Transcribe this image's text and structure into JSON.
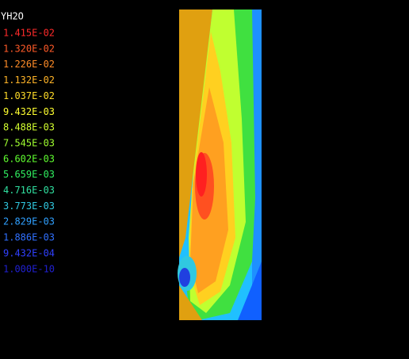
{
  "legend": {
    "title": "YH2O",
    "entries": [
      {
        "label": "1.415E-02",
        "color": "#ff2a2a"
      },
      {
        "label": "1.320E-02",
        "color": "#ff5a28"
      },
      {
        "label": "1.226E-02",
        "color": "#ff8c28"
      },
      {
        "label": "1.132E-02",
        "color": "#ffb428"
      },
      {
        "label": "1.037E-02",
        "color": "#ffdc28"
      },
      {
        "label": "9.432E-03",
        "color": "#ffff30"
      },
      {
        "label": "8.488E-03",
        "color": "#d4ff30"
      },
      {
        "label": "7.545E-03",
        "color": "#a0ff30"
      },
      {
        "label": "6.602E-03",
        "color": "#60ff30"
      },
      {
        "label": "5.659E-03",
        "color": "#30f060"
      },
      {
        "label": "4.716E-03",
        "color": "#30e0a0"
      },
      {
        "label": "3.773E-03",
        "color": "#30c8e0"
      },
      {
        "label": "2.829E-03",
        "color": "#30a0ff"
      },
      {
        "label": "1.886E-03",
        "color": "#3070ff"
      },
      {
        "label": "9.432E-04",
        "color": "#3040ff"
      },
      {
        "label": "1.000E-10",
        "color": "#2020d0"
      }
    ]
  }
}
